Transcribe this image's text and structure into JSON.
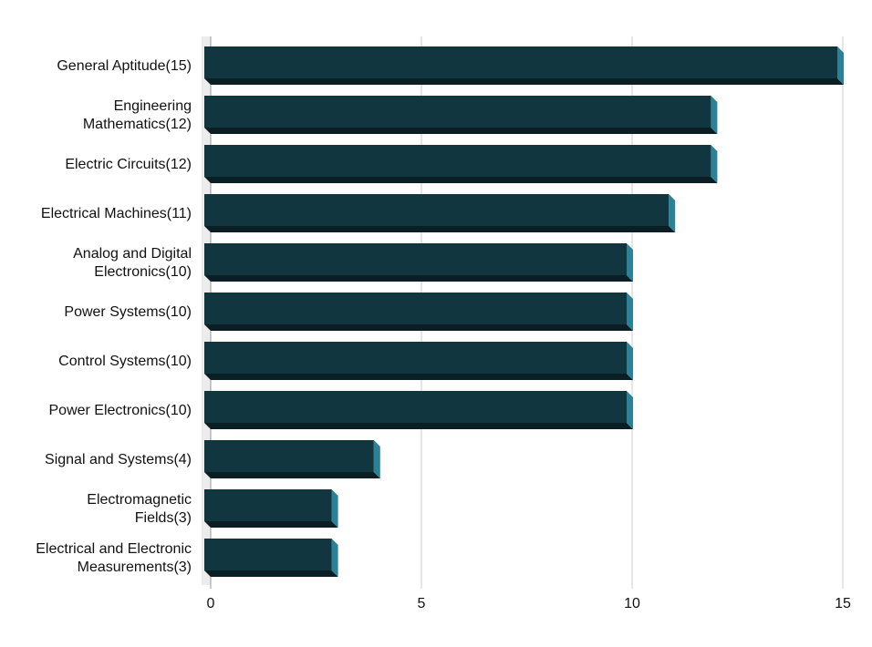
{
  "chart_data": {
    "type": "bar",
    "orientation": "horizontal",
    "categories": [
      "General Aptitude(15)",
      "Engineering Mathematics(12)",
      "Electric Circuits(12)",
      "Electrical Machines(11)",
      "Analog and Digital Electronics(10)",
      "Power Systems(10)",
      "Control Systems(10)",
      "Power Electronics(10)",
      "Signal and Systems(4)",
      "Electromagnetic Fields(3)",
      "Electrical and Electronic Measurements(3)"
    ],
    "values": [
      15,
      12,
      12,
      11,
      10,
      10,
      10,
      10,
      4,
      3,
      3
    ],
    "color": "#12363f",
    "xlim": [
      0,
      15
    ],
    "xticks": [
      0,
      5,
      10,
      15
    ],
    "grid": true
  }
}
